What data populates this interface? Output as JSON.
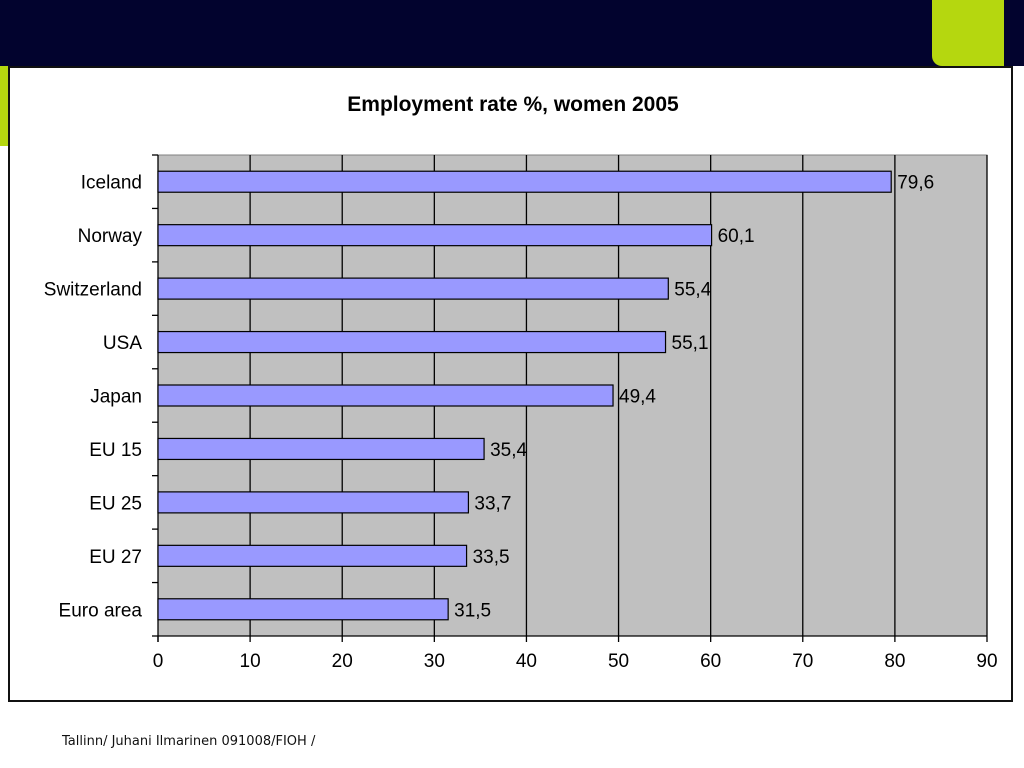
{
  "colors": {
    "header_band": "#02032e",
    "accent": "#b5d70f",
    "plot_area": "#c0c0c0",
    "bar_fill": "#9999ff",
    "bar_stroke": "#000000"
  },
  "footer": {
    "text": "Tallinn/ Juhani Ilmarinen 091008/FIOH /"
  },
  "chart_data": {
    "type": "bar",
    "orientation": "horizontal",
    "title": "Employment rate %, women 2005",
    "xlabel": "",
    "ylabel": "",
    "categories": [
      "Iceland",
      "Norway",
      "Switzerland",
      "USA",
      "Japan",
      "EU 15",
      "EU 25",
      "EU 27",
      "Euro area"
    ],
    "values": [
      79.6,
      60.1,
      55.4,
      55.1,
      49.4,
      35.4,
      33.7,
      33.5,
      31.5
    ],
    "value_labels": [
      "79,6",
      "60,1",
      "55,4",
      "55,1",
      "49,4",
      "35,4",
      "33,7",
      "33,5",
      "31,5"
    ],
    "xlim": [
      0,
      90
    ],
    "xticks": [
      0,
      10,
      20,
      30,
      40,
      50,
      60,
      70,
      80,
      90
    ],
    "vertical_gridlines": true,
    "legend": "none"
  }
}
